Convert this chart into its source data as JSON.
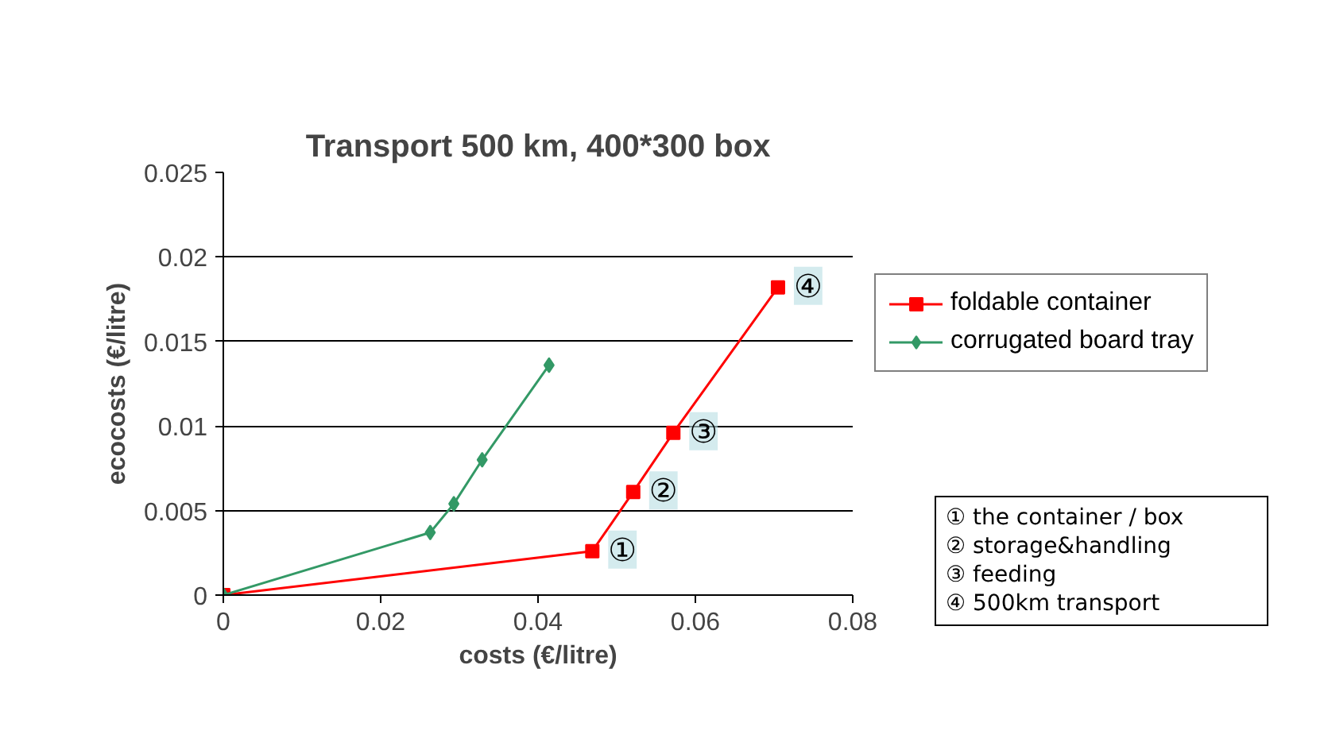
{
  "chart_data": {
    "type": "line",
    "title": "Transport 500 km, 400*300 box",
    "xlabel": "costs (€/litre)",
    "ylabel": "ecocosts (€/litre)",
    "xlim": [
      0,
      0.08
    ],
    "xticks": [
      0,
      0.02,
      0.04,
      0.06,
      0.08
    ],
    "ylim": [
      0,
      0.025
    ],
    "yticks": [
      0,
      0.005,
      0.01,
      0.015,
      0.02,
      0.025
    ],
    "grid": "y",
    "legend": "right",
    "series": [
      {
        "name": "foldable container",
        "color": "#ff0000",
        "marker": "square",
        "x": [
          0,
          0.0469,
          0.0521,
          0.0572,
          0.0705
        ],
        "values": [
          0,
          0.0026,
          0.0061,
          0.0096,
          0.0182
        ]
      },
      {
        "name": "corrugated board tray",
        "color": "#339966",
        "marker": "diamond",
        "x": [
          0,
          0.0263,
          0.0293,
          0.0329,
          0.0414
        ],
        "values": [
          0,
          0.0037,
          0.0054,
          0.008,
          0.0136
        ]
      }
    ],
    "annotations": [
      {
        "text": "①",
        "x": 0.0469,
        "y": 0.0026
      },
      {
        "text": "②",
        "x": 0.0521,
        "y": 0.0061
      },
      {
        "text": "③",
        "x": 0.0572,
        "y": 0.0096
      },
      {
        "text": "④",
        "x": 0.0705,
        "y": 0.0182
      },
      "① the container / box",
      "② storage&handling",
      "③ feeding",
      "④ 500km transport"
    ]
  }
}
